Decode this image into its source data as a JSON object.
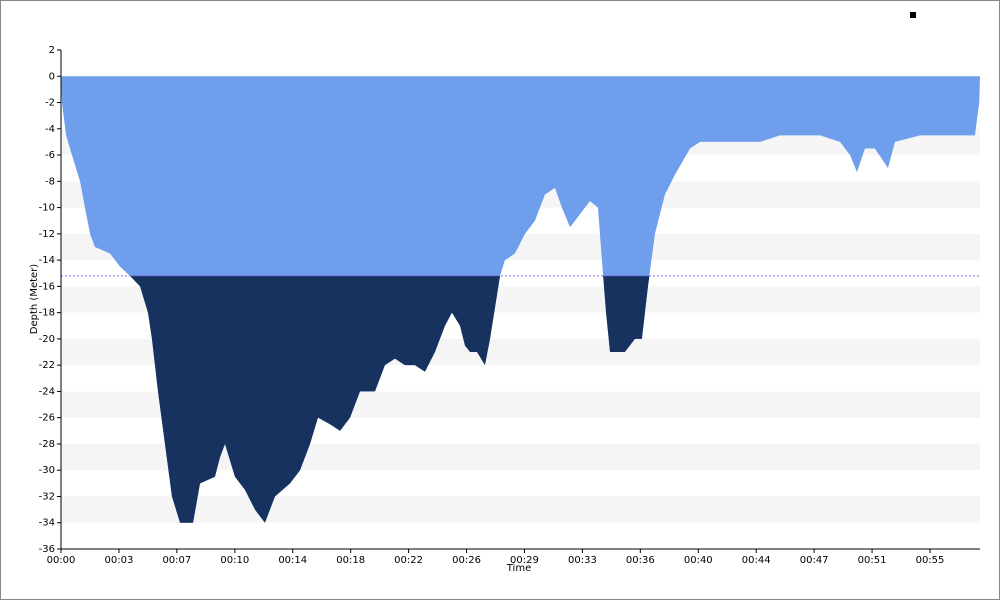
{
  "chart_data": {
    "type": "area",
    "x_label": "Time",
    "y_label": "Depth (Meter)",
    "x": [
      0,
      0.06,
      0.32,
      0.69,
      1.2,
      1.51,
      1.83,
      2.14,
      3.09,
      3.72,
      4.35,
      4.98,
      5.48,
      5.73,
      6.11,
      6.55,
      6.99,
      7.5,
      8.32,
      8.76,
      9.7,
      10.02,
      10.33,
      10.96,
      11.59,
      12.22,
      12.85,
      13.48,
      14.43,
      15.06,
      15.69,
      16.19,
      16.95,
      17.58,
      18.21,
      18.84,
      19.78,
      20.41,
      21.04,
      21.67,
      22.3,
      22.93,
      23.56,
      24.19,
      24.63,
      25.14,
      25.45,
      25.77,
      26.21,
      26.71,
      27.03,
      27.66,
      27.97,
      28.6,
      29.23,
      29.86,
      30.49,
      31.12,
      31.56,
      32.07,
      32.7,
      33.33,
      33.83,
      34.08,
      34.34,
      34.59,
      35.53,
      36.16,
      36.6,
      36.98,
      37.42,
      38.05,
      38.68,
      39.63,
      40.26,
      41.52,
      42.78,
      44.04,
      45.3,
      46.56,
      47.82,
      49.08,
      49.71,
      50.15,
      50.65,
      51.28,
      52.1,
      52.54,
      54.12,
      55.38,
      57.58,
      57.85,
      57.9
    ],
    "series": [
      {
        "name": "Depth",
        "color": "#6f9fec",
        "deep_color": "#17325f",
        "values": [
          0,
          -2,
          -4.5,
          -6,
          -8,
          -10,
          -12,
          -13,
          -13.5,
          -14.5,
          -15.2,
          -16,
          -18,
          -20,
          -24,
          -28,
          -32,
          -34,
          -34,
          -31,
          -30.5,
          -29,
          -28,
          -30.5,
          -31.5,
          -33,
          -34,
          -32,
          -31,
          -30,
          -28,
          -26,
          -26.5,
          -27,
          -26,
          -24,
          -24,
          -22,
          -21.5,
          -22,
          -22,
          -22.5,
          -21,
          -19,
          -18,
          -19,
          -20.5,
          -21,
          -21,
          -22,
          -20,
          -15.2,
          -14,
          -13.5,
          -12,
          -11,
          -9,
          -8.5,
          -10,
          -11.5,
          -10.5,
          -9.5,
          -10,
          -14,
          -18,
          -21,
          -21,
          -20,
          -20,
          -16,
          -12,
          -9,
          -7.5,
          -5.5,
          -5,
          -5,
          -5,
          -5,
          -4.5,
          -4.5,
          -4.5,
          -5,
          -6,
          -7.3,
          -5.5,
          -5.5,
          -7,
          -5,
          -4.5,
          -4.5,
          -4.5,
          -2,
          0
        ]
      }
    ],
    "threshold": -15.2,
    "threshold_color": "#7b68ee",
    "xlim": [
      0,
      57.9
    ],
    "xticks": [
      {
        "value": 0,
        "label": "00:00"
      },
      {
        "value": 3.65,
        "label": "00:03"
      },
      {
        "value": 7.3,
        "label": "00:07"
      },
      {
        "value": 10.95,
        "label": "00:10"
      },
      {
        "value": 14.6,
        "label": "00:14"
      },
      {
        "value": 18.25,
        "label": "00:18"
      },
      {
        "value": 21.9,
        "label": "00:22"
      },
      {
        "value": 25.55,
        "label": "00:26"
      },
      {
        "value": 29.2,
        "label": "00:29"
      },
      {
        "value": 32.85,
        "label": "00:33"
      },
      {
        "value": 36.5,
        "label": "00:36"
      },
      {
        "value": 40.15,
        "label": "00:40"
      },
      {
        "value": 43.8,
        "label": "00:44"
      },
      {
        "value": 47.45,
        "label": "00:47"
      },
      {
        "value": 51.1,
        "label": "00:51"
      },
      {
        "value": 54.75,
        "label": "00:55"
      }
    ],
    "ylim": [
      -36,
      2
    ],
    "yticks": [
      2,
      0,
      -2,
      -4,
      -6,
      -8,
      -10,
      -12,
      -14,
      -16,
      -18,
      -20,
      -22,
      -24,
      -26,
      -28,
      -30,
      -32,
      -34,
      -36
    ],
    "grid": "bands"
  }
}
